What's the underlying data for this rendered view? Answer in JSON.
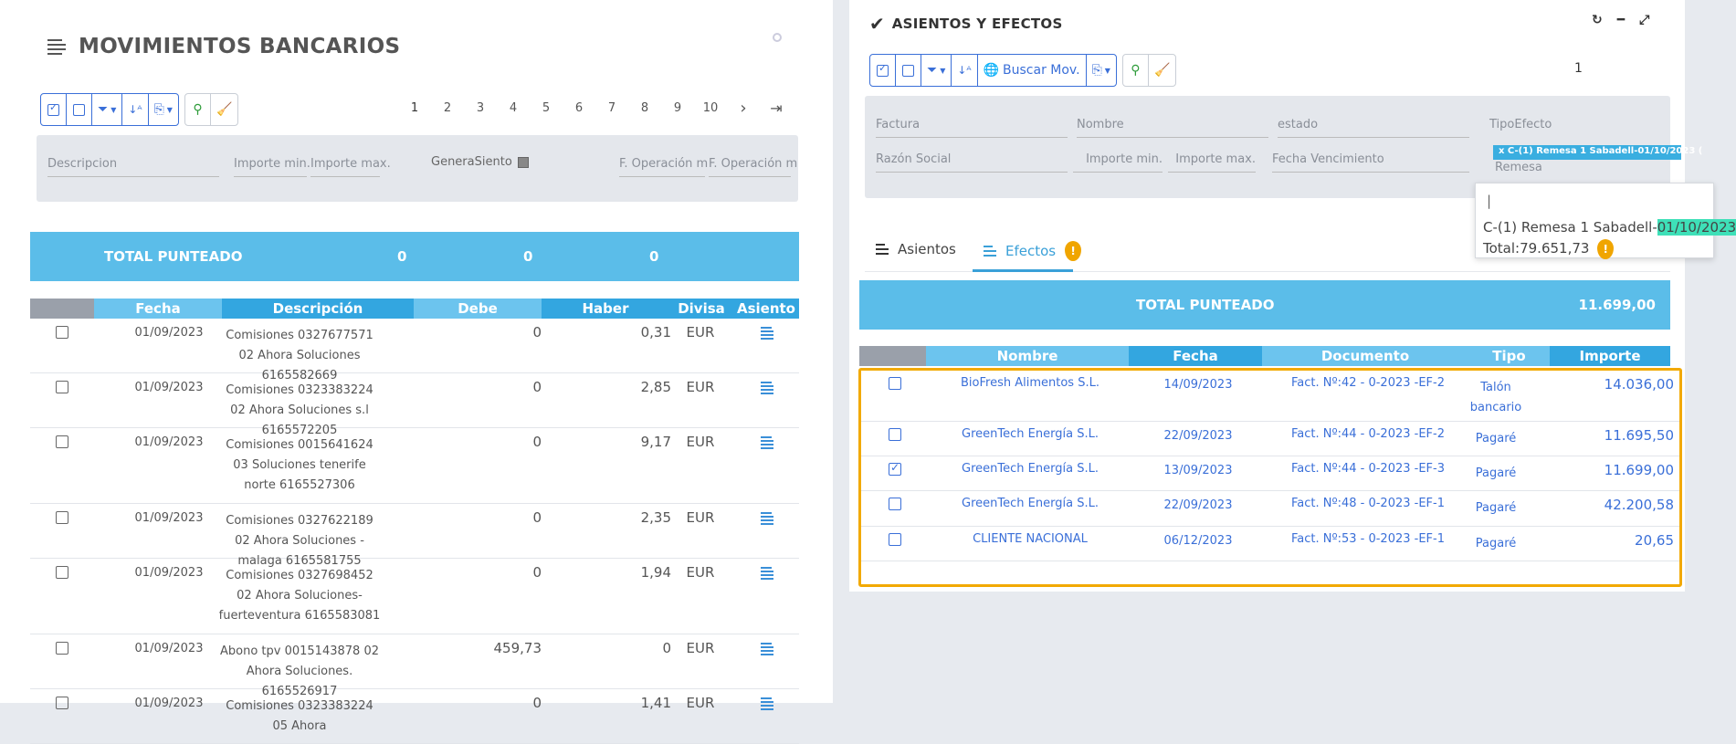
{
  "left": {
    "title": "MOVIMIENTOS BANCARIOS",
    "pages": [
      "1",
      "2",
      "3",
      "4",
      "5",
      "6",
      "7",
      "8",
      "9",
      "10"
    ],
    "filters": {
      "descripcion": "Descripcion",
      "importe_min": "Importe min.",
      "importe_max": "Importe max.",
      "genera_siento": "GeneraSiento",
      "f_op_1": "F. Operación m",
      "f_op_2": "F. Operación m"
    },
    "total": {
      "label": "TOTAL PUNTEADO",
      "v1": "0",
      "v2": "0",
      "v3": "0"
    },
    "columns": [
      "Fecha",
      "Descripción",
      "Debe",
      "Haber",
      "Divisa",
      "Asiento"
    ],
    "rows": [
      {
        "fecha": "01/09/2023",
        "desc": "Comisiones 0327677571 02 Ahora Soluciones 6165582669",
        "debe": "0",
        "haber": "0,31",
        "divisa": "EUR"
      },
      {
        "fecha": "01/09/2023",
        "desc": "Comisiones 0323383224 02 Ahora Soluciones s.l 6165572205",
        "debe": "0",
        "haber": "2,85",
        "divisa": "EUR"
      },
      {
        "fecha": "01/09/2023",
        "desc": "Comisiones 0015641624 03 Soluciones tenerife norte 6165527306",
        "debe": "0",
        "haber": "9,17",
        "divisa": "EUR"
      },
      {
        "fecha": "01/09/2023",
        "desc": "Comisiones 0327622189 02 Ahora Soluciones - malaga 6165581755",
        "debe": "0",
        "haber": "2,35",
        "divisa": "EUR"
      },
      {
        "fecha": "01/09/2023",
        "desc": "Comisiones 0327698452 02 Ahora Soluciones-fuerteventura 6165583081",
        "debe": "0",
        "haber": "1,94",
        "divisa": "EUR"
      },
      {
        "fecha": "01/09/2023",
        "desc": "Abono tpv 0015143878 02 Ahora Soluciones. 6165526917",
        "debe": "459,73",
        "haber": "0",
        "divisa": "EUR"
      },
      {
        "fecha": "01/09/2023",
        "desc": "Comisiones 0323383224 05 Ahora",
        "debe": "0",
        "haber": "1,41",
        "divisa": "EUR"
      }
    ]
  },
  "right": {
    "title": "ASIENTOS Y EFECTOS",
    "buscar_label": "Buscar Mov.",
    "page": "1",
    "filters": {
      "factura": "Factura",
      "nombre": "Nombre",
      "estado": "estado",
      "tipo_efecto": "TipoEfecto",
      "razon_social": "Razón Social",
      "importe_min": "Importe min.",
      "importe_max": "Importe max.",
      "fecha_venc": "Fecha Vencimiento",
      "chip": "x  C-(1) Remesa 1 Sabadell-01/10/2023 (",
      "remesa": "Remesa"
    },
    "dropdown": {
      "cursor": "|",
      "option_prefix": "C-(1) Remesa 1 Sabadell-",
      "option_date": "01/10/2023",
      "total": "Total:79.651,73"
    },
    "tabs": {
      "asientos": "Asientos",
      "efectos": "Efectos"
    },
    "total": {
      "label": "TOTAL PUNTEADO",
      "value": "11.699,00"
    },
    "columns": [
      "Nombre",
      "Fecha",
      "Documento",
      "Tipo",
      "Importe"
    ],
    "rows": [
      {
        "nombre": "BioFresh Alimentos S.L.",
        "fecha": "14/09/2023",
        "doc": "Fact. Nº:42 - 0-2023 -EF-2",
        "tipo": "Talón bancario",
        "importe": "14.036,00",
        "checked": false
      },
      {
        "nombre": "GreenTech Energía S.L.",
        "fecha": "22/09/2023",
        "doc": "Fact. Nº:44 - 0-2023 -EF-2",
        "tipo": "Pagaré",
        "importe": "11.695,50",
        "checked": false
      },
      {
        "nombre": "GreenTech Energía S.L.",
        "fecha": "13/09/2023",
        "doc": "Fact. Nº:44 - 0-2023 -EF-3",
        "tipo": "Pagaré",
        "importe": "11.699,00",
        "checked": true
      },
      {
        "nombre": "GreenTech Energía S.L.",
        "fecha": "22/09/2023",
        "doc": "Fact. Nº:48 - 0-2023 -EF-1",
        "tipo": "Pagaré",
        "importe": "42.200,58",
        "checked": false
      },
      {
        "nombre": "CLIENTE NACIONAL",
        "fecha": "06/12/2023",
        "doc": "Fact. Nº:53 - 0-2023 -EF-1",
        "tipo": "Pagaré",
        "importe": "20,65",
        "checked": false
      }
    ]
  },
  "colors": {
    "accent_blue": "#3a6fd8",
    "total_bar": "#5bbde9",
    "header_dark": "#33a6e0",
    "header_light": "#6cc4ee",
    "highlight_border": "#f2a900",
    "date_highlight": "#3ee0b8"
  }
}
